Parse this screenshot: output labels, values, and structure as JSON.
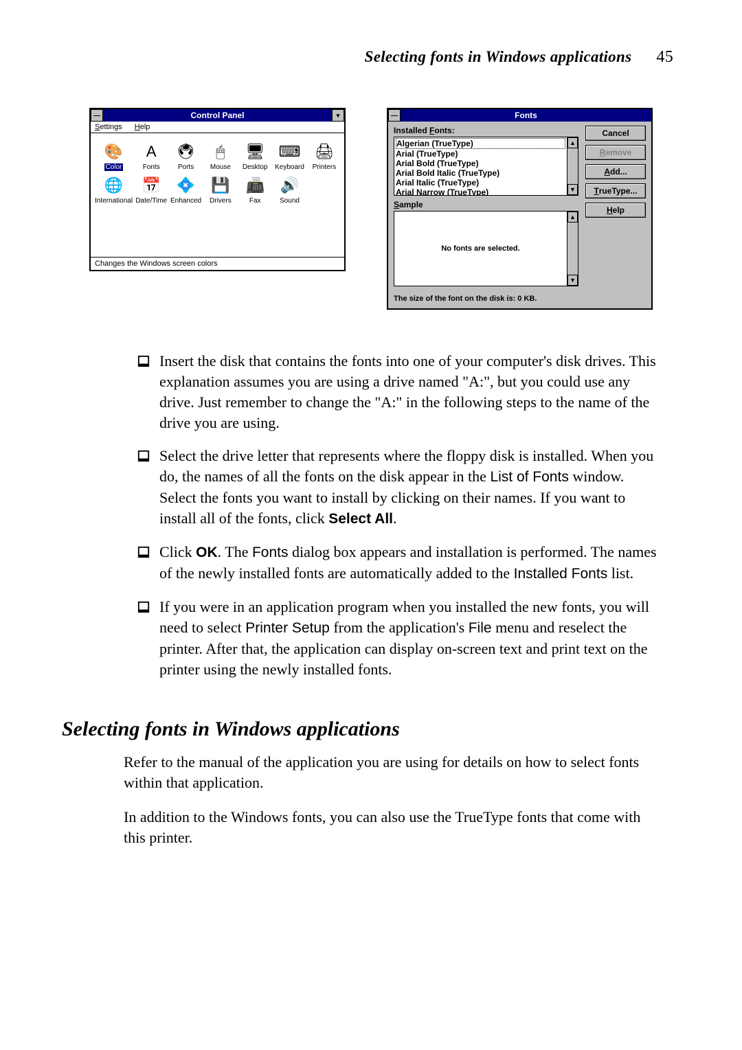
{
  "header": {
    "title": "Selecting fonts in Windows applications",
    "page_number": "45"
  },
  "control_panel": {
    "title": "Control Panel",
    "menus": [
      "Settings",
      "Help"
    ],
    "icons": [
      {
        "glyph": "🎨",
        "label": "Color",
        "selected": true
      },
      {
        "glyph": "A",
        "label": "Fonts"
      },
      {
        "glyph": "🖲",
        "label": "Ports"
      },
      {
        "glyph": "🖱",
        "label": "Mouse"
      },
      {
        "glyph": "🖥",
        "label": "Desktop"
      },
      {
        "glyph": "⌨",
        "label": "Keyboard"
      },
      {
        "glyph": "🖨",
        "label": "Printers"
      },
      {
        "glyph": "🌐",
        "label": "International"
      },
      {
        "glyph": "📅",
        "label": "Date/Time"
      },
      {
        "glyph": "💠",
        "label": "Enhanced"
      },
      {
        "glyph": "💾",
        "label": "Drivers"
      },
      {
        "glyph": "📠",
        "label": "Fax"
      },
      {
        "glyph": "🔊",
        "label": "Sound"
      }
    ],
    "status": "Changes the Windows screen colors"
  },
  "fonts_dialog": {
    "title": "Fonts",
    "installed_label": "Installed Fonts:",
    "installed_label_ul": "F",
    "items": [
      "Algerian (TrueType)",
      "Arial (TrueType)",
      "Arial Bold (TrueType)",
      "Arial Bold Italic (TrueType)",
      "Arial Italic (TrueType)",
      "Arial Narrow (TrueType)"
    ],
    "buttons": {
      "cancel": "Cancel",
      "remove": "Remove",
      "add": "Add...",
      "truetype": "TrueType...",
      "help": "Help"
    },
    "sample_label": "Sample",
    "sample_label_ul": "S",
    "sample_text": "No fonts are selected.",
    "size_line": "The size of the font on the disk is:  0 KB."
  },
  "steps": [
    {
      "text": "Insert the disk that contains the fonts into one of your computer's disk drives. This explanation assumes you are using a drive named \"A:\", but you could use any drive. Just remember to change the \"A:\" in the following steps to the name of the drive you are using."
    },
    {
      "html": "Select the drive letter that represents where the floppy disk is installed. When you do, the names of all the fonts on the disk appear in the <span class=\"sans\">List of Fonts</span> window. Select the fonts you want to install by clicking on their names. If you want to install all of the fonts, click <span class=\"sans bold\">Select All</span>."
    },
    {
      "html": "Click <span class=\"sans bold\">OK</span>. The <span class=\"sans\">Fonts</span> dialog box appears and installation is performed. The names of the newly installed fonts are automatically added to the <span class=\"sans\">Installed Fonts</span> list."
    },
    {
      "html": "If you were in an application program when you installed the new fonts, you will need to select <span class=\"sans\">Printer Setup</span> from the application's <span class=\"sans\">File</span> menu and reselect the printer. After that, the application can display on-screen text and print text on the printer using the newly installed fonts."
    }
  ],
  "section_heading": "Selecting fonts in Windows applications",
  "paragraphs": [
    "Refer to the manual of the application you are using for details on how to select fonts within that application.",
    "In addition to the Windows fonts, you can also use the TrueType fonts that come with this printer."
  ],
  "colors": {
    "titlebar": "#000080",
    "dialog_bg": "#c0c0c0",
    "text": "#000000",
    "page_bg": "#ffffff"
  }
}
